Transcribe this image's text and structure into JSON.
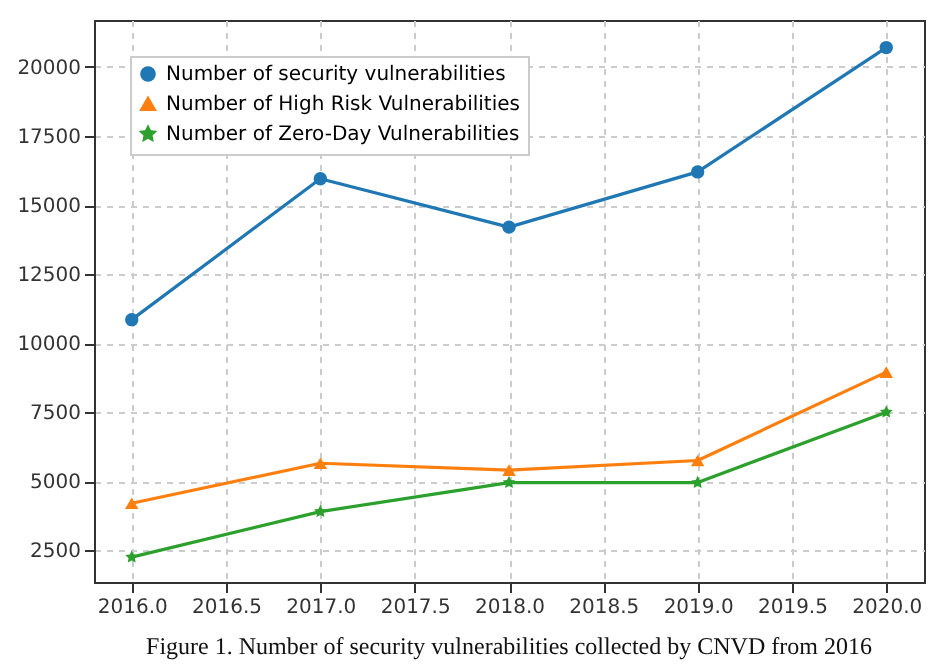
{
  "chart_data": {
    "type": "line",
    "x": [
      2016,
      2017,
      2018,
      2019,
      2020
    ],
    "series": [
      {
        "name": "Number of security vulnerabilities",
        "color": "#1f77b4",
        "marker": "circle",
        "values": [
          10850,
          15950,
          14200,
          16200,
          20700
        ]
      },
      {
        "name": "Number of High Risk Vulnerabilities",
        "color": "#ff7f0e",
        "marker": "triangle",
        "values": [
          4200,
          5650,
          5400,
          5750,
          8950
        ]
      },
      {
        "name": "Number of Zero-Day Vulnerabilities",
        "color": "#2ca02c",
        "marker": "star",
        "values": [
          2250,
          3900,
          4950,
          4950,
          7500
        ]
      }
    ],
    "xlim": [
      2015.8,
      2020.2
    ],
    "xticks": [
      {
        "value": 2016,
        "label": "2016.0"
      },
      {
        "value": 2016.5,
        "label": "2016.5"
      },
      {
        "value": 2017,
        "label": "2017.0"
      },
      {
        "value": 2017.5,
        "label": "2017.5"
      },
      {
        "value": 2018,
        "label": "2018.0"
      },
      {
        "value": 2018.5,
        "label": "2018.5"
      },
      {
        "value": 2019,
        "label": "2019.0"
      },
      {
        "value": 2019.5,
        "label": "2019.5"
      },
      {
        "value": 2020,
        "label": "2020.0"
      }
    ],
    "ylim": [
      1350,
      21700
    ],
    "yticks": [
      2500,
      5000,
      7500,
      10000,
      12500,
      15000,
      17500,
      20000
    ],
    "grid": true,
    "line_style": "solid",
    "legend": "top left",
    "annotations": [
      "Figure 1.   Number of security vulnerabilities collected by CNVD from 2016"
    ]
  }
}
